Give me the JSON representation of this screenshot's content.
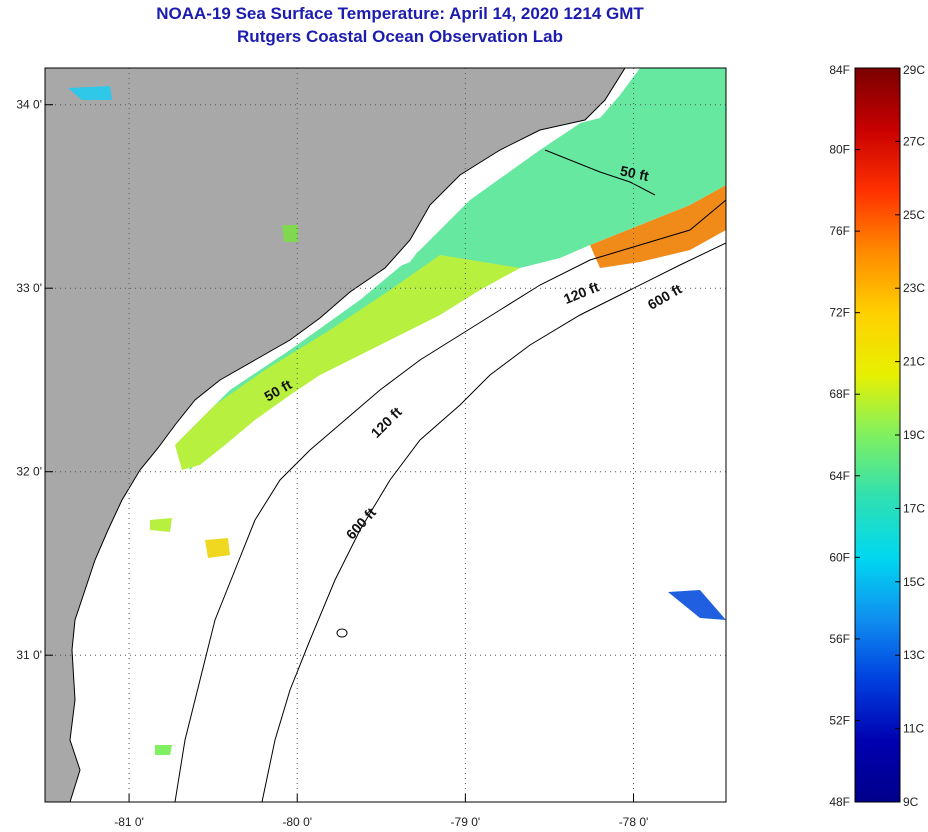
{
  "header": {
    "title": "NOAA-19 Sea Surface Temperature:  April 14, 2020 1214 GMT",
    "subtitle": "Rutgers Coastal Ocean Observation Lab"
  },
  "map": {
    "lon_range": [
      -81.5,
      -77.45
    ],
    "lat_range": [
      30.2,
      34.2
    ],
    "lon_ticks": [
      {
        "value": -81,
        "label": "-81 0'"
      },
      {
        "value": -80,
        "label": "-80 0'"
      },
      {
        "value": -79,
        "label": "-79 0'"
      },
      {
        "value": -78,
        "label": "-78 0'"
      }
    ],
    "lat_ticks": [
      {
        "value": 34,
        "label": "34 0'"
      },
      {
        "value": 33,
        "label": "33 0'"
      },
      {
        "value": 32,
        "label": "32 0'"
      },
      {
        "value": 31,
        "label": "31 0'"
      }
    ],
    "contour_labels": [
      {
        "text": "50 ft",
        "lon": -78.0,
        "lat": 33.6,
        "rotate": 12
      },
      {
        "text": "120 ft",
        "lon": -78.3,
        "lat": 32.95,
        "rotate": -22
      },
      {
        "text": "600 ft",
        "lon": -77.8,
        "lat": 32.93,
        "rotate": -30
      },
      {
        "text": "50 ft",
        "lon": -80.1,
        "lat": 32.42,
        "rotate": -30
      },
      {
        "text": "120 ft",
        "lon": -79.45,
        "lat": 32.25,
        "rotate": -45
      },
      {
        "text": "600 ft",
        "lon": -79.6,
        "lat": 31.7,
        "rotate": -48
      }
    ],
    "colors": {
      "land": "#a8a8a8",
      "ocean_no_data": "#ffffff",
      "water_cool": "#66e8a0",
      "water_mid": "#b8f040",
      "water_warm": "#f0d820",
      "water_hot": "#f08a18"
    }
  },
  "colorbar": {
    "fahrenheit_labels": [
      "84F",
      "80F",
      "76F",
      "72F",
      "68F",
      "64F",
      "60F",
      "56F",
      "52F",
      "48F"
    ],
    "celsius_labels": [
      "29C",
      "27C",
      "25C",
      "23C",
      "21C",
      "19C",
      "17C",
      "15C",
      "13C",
      "11C",
      "9C"
    ],
    "gradient": [
      "#7a0000",
      "#c80000",
      "#ff3000",
      "#ff8a00",
      "#ffd000",
      "#e8f000",
      "#80f060",
      "#30e0b0",
      "#00d8f0",
      "#1090f0",
      "#0040e0",
      "#0000b0",
      "#00008a"
    ]
  }
}
